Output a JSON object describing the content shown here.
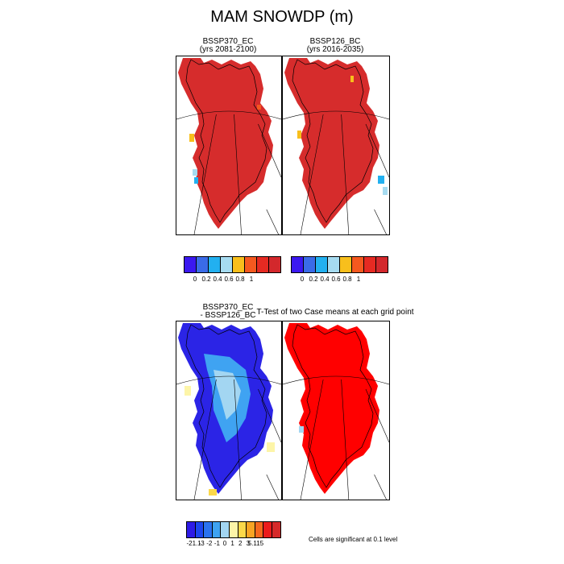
{
  "figure": {
    "title": "MAM SNOWDP (m)"
  },
  "panels": [
    {
      "title_line1": "BSSP370_EC",
      "title_line2": "(yrs 2081-2100)",
      "fill": "#d62c2c"
    },
    {
      "title_line1": "BSSP126_BC",
      "title_line2": "(yrs 2016-2035)",
      "fill": "#d62c2c"
    },
    {
      "title_line1": "BSSP370_EC",
      "title_line2": "- BSSP126_BC",
      "fill": "#2b24e6"
    },
    {
      "title_line1": "T-Test of two Case means at each grid point",
      "title_line2": "",
      "fill": "#ff0000"
    }
  ],
  "colorbar_top": {
    "colors": [
      "#3b18f0",
      "#3a6be8",
      "#22b0f0",
      "#a6dbf0",
      "#f8bf1c",
      "#f5591f",
      "#e62a22",
      "#d3282c"
    ],
    "labels": [
      "0",
      "0.2",
      "0.4",
      "0.6",
      "0.8",
      "1"
    ]
  },
  "colorbar_bottom": {
    "colors": [
      "#2e1be6",
      "#1d46ef",
      "#2a73f0",
      "#3fa3f2",
      "#a3d6f2",
      "#fdf5a8",
      "#fbd84a",
      "#f8a423",
      "#f5681d",
      "#ec1b1b",
      "#d62a2a"
    ],
    "labels": [
      "-21.1",
      "-3",
      "-2",
      "-1",
      "0",
      "1",
      "2",
      "3",
      "5.115"
    ]
  },
  "significance_note": "Cells are significant at 0.1 level"
}
